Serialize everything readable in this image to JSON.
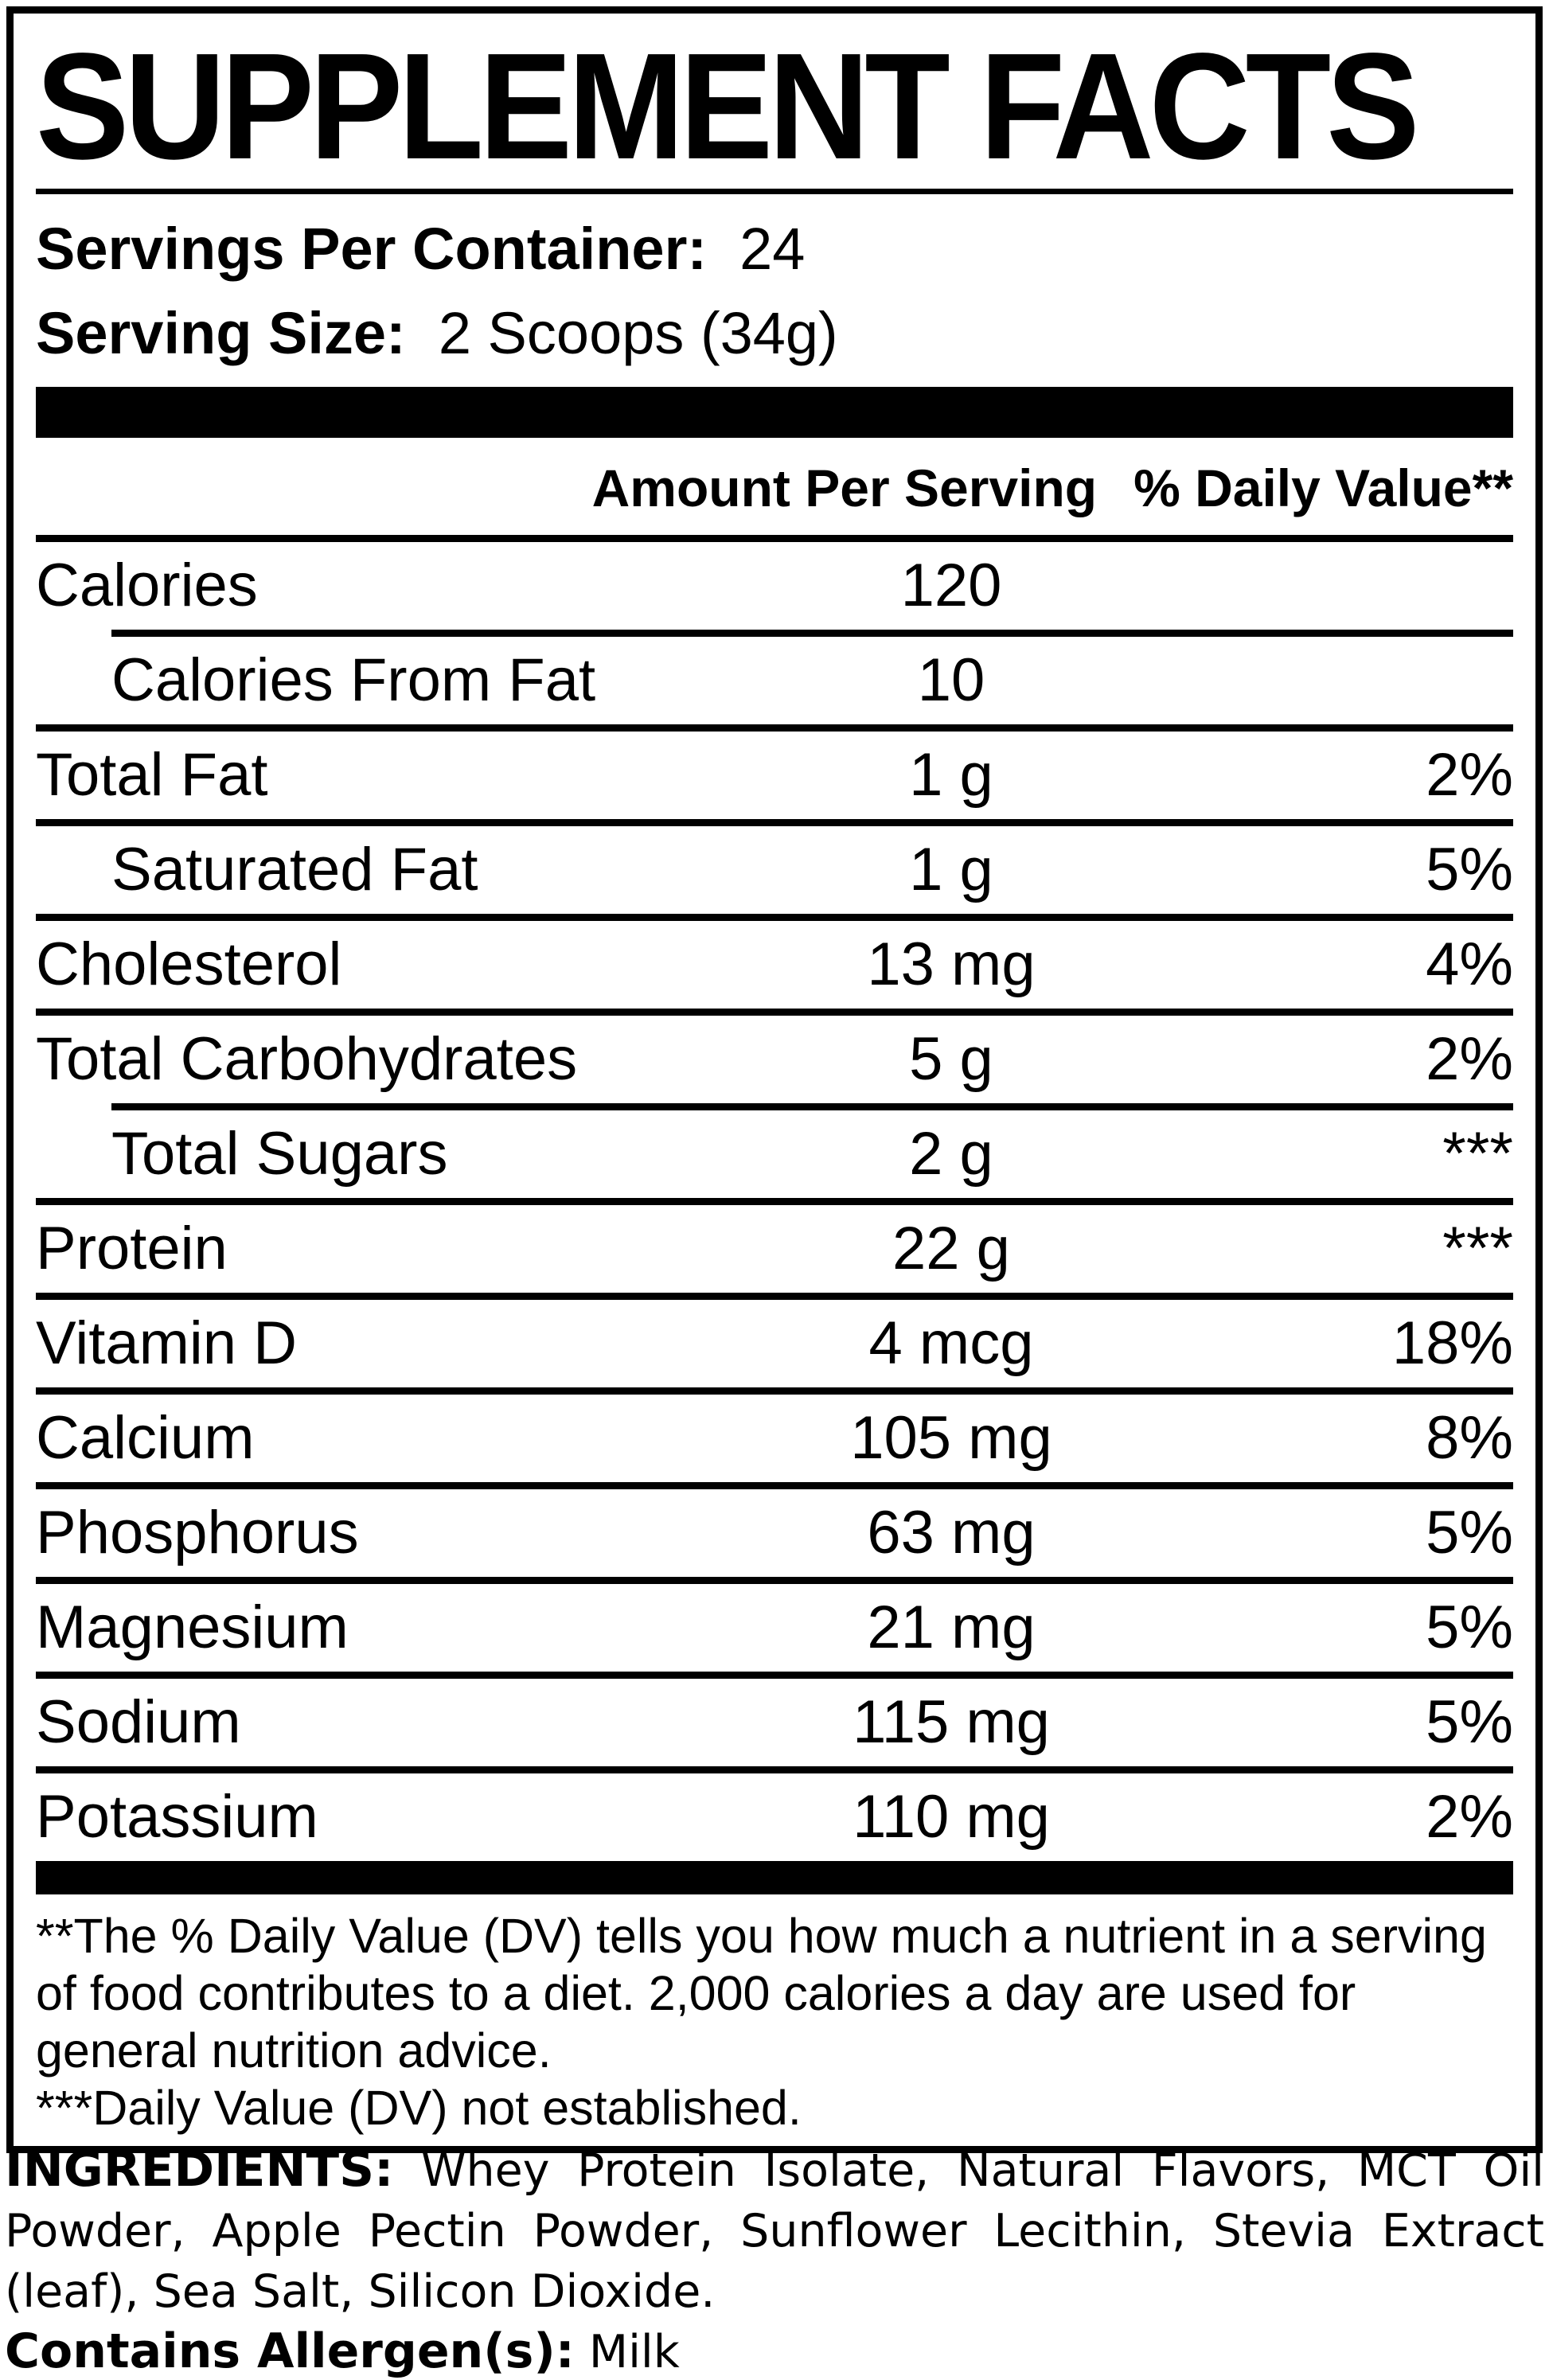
{
  "title": "SUPPLEMENT FACTS",
  "serving_info": {
    "servings_label": "Servings Per Container:",
    "servings_value": "24",
    "size_label": "Serving Size:",
    "size_value": "2 Scoops (34g)"
  },
  "table": {
    "amount_header": "Amount Per Serving",
    "dv_header": "% Daily Value**",
    "rows": [
      {
        "name": "Calories",
        "amount": "120",
        "dv": "",
        "indent": false,
        "sep": "indent"
      },
      {
        "name": "Calories From Fat",
        "amount": "10",
        "dv": "",
        "indent": true,
        "sep": "full"
      },
      {
        "name": "Total Fat",
        "amount": "1 g",
        "dv": "2%",
        "indent": false,
        "sep": "full"
      },
      {
        "name": "Saturated Fat",
        "amount": "1 g",
        "dv": "5%",
        "indent": true,
        "sep": "full"
      },
      {
        "name": "Cholesterol",
        "amount": "13 mg",
        "dv": "4%",
        "indent": false,
        "sep": "full"
      },
      {
        "name": "Total Carbohydrates",
        "amount": "5 g",
        "dv": "2%",
        "indent": false,
        "sep": "indent"
      },
      {
        "name": "Total Sugars",
        "amount": "2 g",
        "dv": "***",
        "indent": true,
        "sep": "full"
      },
      {
        "name": "Protein",
        "amount": "22 g",
        "dv": "***",
        "indent": false,
        "sep": "full"
      },
      {
        "name": "Vitamin D",
        "amount": "4 mcg",
        "dv": "18%",
        "indent": false,
        "sep": "full"
      },
      {
        "name": "Calcium",
        "amount": "105 mg",
        "dv": "8%",
        "indent": false,
        "sep": "full"
      },
      {
        "name": "Phosphorus",
        "amount": "63 mg",
        "dv": "5%",
        "indent": false,
        "sep": "full"
      },
      {
        "name": "Magnesium",
        "amount": "21 mg",
        "dv": "5%",
        "indent": false,
        "sep": "full"
      },
      {
        "name": "Sodium",
        "amount": "115 mg",
        "dv": "5%",
        "indent": false,
        "sep": "full"
      },
      {
        "name": "Potassium",
        "amount": "110 mg",
        "dv": "2%",
        "indent": false,
        "sep": "none"
      }
    ]
  },
  "footnotes": {
    "dv_note": "**The % Daily Value (DV) tells you how much a nutrient in a serving of food contributes to a diet. 2,000 calories a day are used for general nutrition advice.",
    "not_established_note": "***Daily Value (DV) not established."
  },
  "ingredients": {
    "label": "INGREDIENTS:",
    "text": "Whey Protein Isolate, Natural Flavors, MCT Oil Powder, Apple Pectin Powder, Sunflower Lecithin, Stevia Extract (leaf), Sea Salt, Silicon Dioxide."
  },
  "allergens": {
    "label": "Contains Allergen(s):",
    "value": "Milk"
  },
  "colors": {
    "ink": "#000000",
    "background": "#ffffff"
  }
}
